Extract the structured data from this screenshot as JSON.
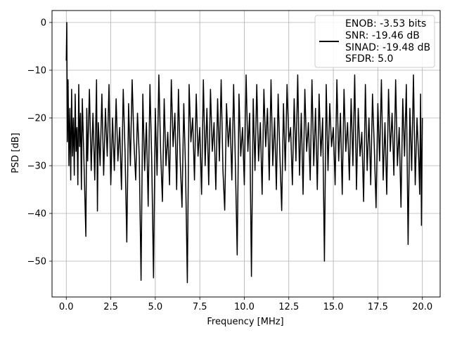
{
  "chart_data": {
    "type": "line",
    "xlabel": "Frequency [MHz]",
    "ylabel": "PSD [dB]",
    "xlim": [
      -0.8,
      21.0
    ],
    "ylim": [
      -57.5,
      2.5
    ],
    "xticks": [
      0.0,
      2.5,
      5.0,
      7.5,
      10.0,
      12.5,
      15.0,
      17.5,
      20.0
    ],
    "xtick_labels": [
      "0.0",
      "2.5",
      "5.0",
      "7.5",
      "10.0",
      "12.5",
      "15.0",
      "17.5",
      "20.0"
    ],
    "yticks": [
      0,
      -10,
      -20,
      -30,
      -40,
      -50
    ],
    "ytick_labels": [
      "0",
      "−10",
      "−20",
      "−30",
      "−40",
      "−50"
    ],
    "grid": true,
    "legend_position": "top-right",
    "legend_lines": [
      "ENOB: -3.53 bits",
      "SNR: -19.46 dB",
      "SINAD: -19.48 dB",
      "SFDR: 5.0"
    ],
    "series": [
      {
        "color": "#000000",
        "description": "noise-like PSD spanning 0–20 MHz, values mostly between about -33 and -12 dB with deep dips",
        "points": [
          [
            0.0,
            -8
          ],
          [
            0.03,
            0
          ],
          [
            0.06,
            -25
          ],
          [
            0.1,
            -12
          ],
          [
            0.15,
            -30
          ],
          [
            0.2,
            -18
          ],
          [
            0.25,
            -33
          ],
          [
            0.3,
            -14
          ],
          [
            0.35,
            -28
          ],
          [
            0.4,
            -20
          ],
          [
            0.45,
            -32
          ],
          [
            0.5,
            -15
          ],
          [
            0.55,
            -27
          ],
          [
            0.6,
            -22
          ],
          [
            0.65,
            -34
          ],
          [
            0.7,
            -13
          ],
          [
            0.75,
            -26
          ],
          [
            0.8,
            -19
          ],
          [
            0.85,
            -35
          ],
          [
            0.9,
            -16
          ],
          [
            1.0,
            -30
          ],
          [
            1.1,
            -44.8
          ],
          [
            1.15,
            -18
          ],
          [
            1.2,
            -29
          ],
          [
            1.3,
            -14
          ],
          [
            1.4,
            -31
          ],
          [
            1.5,
            -19
          ],
          [
            1.6,
            -33
          ],
          [
            1.7,
            -12
          ],
          [
            1.75,
            -39.5
          ],
          [
            1.8,
            -21
          ],
          [
            1.9,
            -30
          ],
          [
            2.0,
            -15
          ],
          [
            2.1,
            -32
          ],
          [
            2.2,
            -18
          ],
          [
            2.3,
            -28
          ],
          [
            2.4,
            -13
          ],
          [
            2.5,
            -34
          ],
          [
            2.6,
            -20
          ],
          [
            2.7,
            -31
          ],
          [
            2.8,
            -16
          ],
          [
            2.9,
            -29
          ],
          [
            3.0,
            -22
          ],
          [
            3.1,
            -35
          ],
          [
            3.2,
            -14
          ],
          [
            3.3,
            -27
          ],
          [
            3.4,
            -46
          ],
          [
            3.5,
            -17
          ],
          [
            3.6,
            -30
          ],
          [
            3.7,
            -12
          ],
          [
            3.8,
            -25
          ],
          [
            3.9,
            -33
          ],
          [
            4.0,
            -19
          ],
          [
            4.1,
            -28
          ],
          [
            4.2,
            -54
          ],
          [
            4.3,
            -15
          ],
          [
            4.4,
            -31
          ],
          [
            4.5,
            -21
          ],
          [
            4.6,
            -38.5
          ],
          [
            4.7,
            -13
          ],
          [
            4.8,
            -29
          ],
          [
            4.9,
            -53.5
          ],
          [
            5.0,
            -18
          ],
          [
            5.1,
            -32
          ],
          [
            5.2,
            -11
          ],
          [
            5.3,
            -27
          ],
          [
            5.4,
            -37.5
          ],
          [
            5.5,
            -16
          ],
          [
            5.6,
            -30
          ],
          [
            5.7,
            -23
          ],
          [
            5.8,
            -34
          ],
          [
            5.9,
            -12
          ],
          [
            6.0,
            -26
          ],
          [
            6.1,
            -19
          ],
          [
            6.2,
            -35
          ],
          [
            6.3,
            -14
          ],
          [
            6.4,
            -29
          ],
          [
            6.5,
            -38.7
          ],
          [
            6.6,
            -17
          ],
          [
            6.7,
            -31
          ],
          [
            6.8,
            -54.5
          ],
          [
            6.9,
            -13
          ],
          [
            7.0,
            -25
          ],
          [
            7.1,
            -20
          ],
          [
            7.2,
            -33
          ],
          [
            7.3,
            -15
          ],
          [
            7.4,
            -28
          ],
          [
            7.5,
            -22
          ],
          [
            7.6,
            -36
          ],
          [
            7.7,
            -12
          ],
          [
            7.8,
            -30
          ],
          [
            7.9,
            -18
          ],
          [
            8.0,
            -34
          ],
          [
            8.1,
            -14
          ],
          [
            8.2,
            -27
          ],
          [
            8.3,
            -21
          ],
          [
            8.4,
            -35
          ],
          [
            8.5,
            -16
          ],
          [
            8.6,
            -29
          ],
          [
            8.7,
            -12
          ],
          [
            8.8,
            -31
          ],
          [
            8.9,
            -39.3
          ],
          [
            9.0,
            -17
          ],
          [
            9.1,
            -26
          ],
          [
            9.2,
            -20
          ],
          [
            9.3,
            -33
          ],
          [
            9.4,
            -13
          ],
          [
            9.5,
            -30
          ],
          [
            9.6,
            -48.7
          ],
          [
            9.7,
            -15
          ],
          [
            9.8,
            -28
          ],
          [
            9.9,
            -22
          ],
          [
            10.0,
            -34
          ],
          [
            10.1,
            -11
          ],
          [
            10.2,
            -27
          ],
          [
            10.3,
            -19
          ],
          [
            10.4,
            -53.2
          ],
          [
            10.5,
            -16
          ],
          [
            10.6,
            -31
          ],
          [
            10.7,
            -13
          ],
          [
            10.8,
            -29
          ],
          [
            10.9,
            -21
          ],
          [
            11.0,
            -36
          ],
          [
            11.1,
            -14
          ],
          [
            11.2,
            -26
          ],
          [
            11.3,
            -18
          ],
          [
            11.4,
            -33
          ],
          [
            11.5,
            -12
          ],
          [
            11.6,
            -30
          ],
          [
            11.7,
            -20
          ],
          [
            11.8,
            -35
          ],
          [
            11.9,
            -15
          ],
          [
            12.0,
            -28
          ],
          [
            12.1,
            -39.4
          ],
          [
            12.2,
            -17
          ],
          [
            12.3,
            -31
          ],
          [
            12.4,
            -13
          ],
          [
            12.5,
            -25
          ],
          [
            12.6,
            -22
          ],
          [
            12.7,
            -34
          ],
          [
            12.8,
            -16
          ],
          [
            12.9,
            -29
          ],
          [
            13.0,
            -11
          ],
          [
            13.1,
            -32
          ],
          [
            13.2,
            -19
          ],
          [
            13.3,
            -36
          ],
          [
            13.4,
            -14
          ],
          [
            13.5,
            -27
          ],
          [
            13.6,
            -21
          ],
          [
            13.7,
            -33
          ],
          [
            13.8,
            -12
          ],
          [
            13.9,
            -30
          ],
          [
            14.0,
            -18
          ],
          [
            14.1,
            -35
          ],
          [
            14.2,
            -15
          ],
          [
            14.3,
            -28
          ],
          [
            14.4,
            -20
          ],
          [
            14.5,
            -50
          ],
          [
            14.6,
            -13
          ],
          [
            14.7,
            -31
          ],
          [
            14.8,
            -17
          ],
          [
            14.9,
            -26
          ],
          [
            15.0,
            -22
          ],
          [
            15.1,
            -34
          ],
          [
            15.2,
            -12
          ],
          [
            15.3,
            -29
          ],
          [
            15.4,
            -19
          ],
          [
            15.5,
            -36
          ],
          [
            15.6,
            -14
          ],
          [
            15.7,
            -27
          ],
          [
            15.8,
            -21
          ],
          [
            15.9,
            -33
          ],
          [
            16.0,
            -16
          ],
          [
            16.1,
            -30
          ],
          [
            16.2,
            -11
          ],
          [
            16.3,
            -35
          ],
          [
            16.4,
            -18
          ],
          [
            16.5,
            -28
          ],
          [
            16.6,
            -23
          ],
          [
            16.7,
            -37.5
          ],
          [
            16.8,
            -13
          ],
          [
            16.9,
            -31
          ],
          [
            17.0,
            -20
          ],
          [
            17.1,
            -34
          ],
          [
            17.2,
            -15
          ],
          [
            17.3,
            -26
          ],
          [
            17.4,
            -38.8
          ],
          [
            17.5,
            -17
          ],
          [
            17.6,
            -29
          ],
          [
            17.7,
            -12
          ],
          [
            17.8,
            -33
          ],
          [
            17.9,
            -21
          ],
          [
            18.0,
            -36
          ],
          [
            18.1,
            -14
          ],
          [
            18.2,
            -27
          ],
          [
            18.3,
            -19
          ],
          [
            18.4,
            -32
          ],
          [
            18.5,
            -12
          ],
          [
            18.6,
            -30
          ],
          [
            18.7,
            -22
          ],
          [
            18.8,
            -38.7
          ],
          [
            18.9,
            -16
          ],
          [
            19.0,
            -28
          ],
          [
            19.1,
            -13
          ],
          [
            19.2,
            -46.5
          ],
          [
            19.3,
            -18
          ],
          [
            19.4,
            -31
          ],
          [
            19.5,
            -11
          ],
          [
            19.6,
            -34
          ],
          [
            19.7,
            -20
          ],
          [
            19.8,
            -29
          ],
          [
            19.85,
            -36
          ],
          [
            19.9,
            -15
          ],
          [
            19.95,
            -42.5
          ],
          [
            20.0,
            -20
          ]
        ]
      }
    ]
  }
}
